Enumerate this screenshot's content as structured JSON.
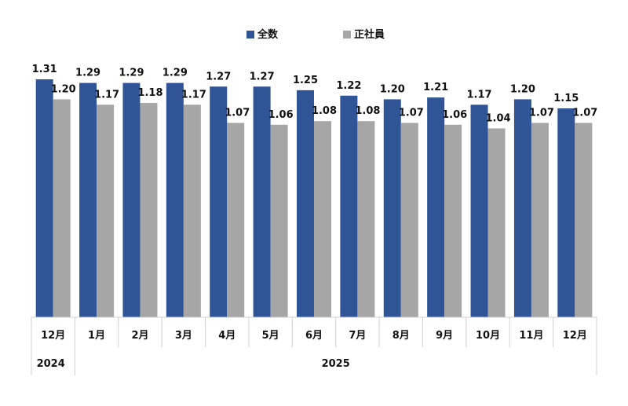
{
  "chart_data": {
    "type": "bar",
    "categories": [
      "12月",
      "1月",
      "2月",
      "3月",
      "4月",
      "5月",
      "6月",
      "7月",
      "8月",
      "9月",
      "10月",
      "11月",
      "12月"
    ],
    "years": [
      {
        "label": "2024",
        "span": [
          0,
          0
        ]
      },
      {
        "label": "2025",
        "span": [
          1,
          12
        ]
      }
    ],
    "series": [
      {
        "name": "全数",
        "color": "#2f5597",
        "values": [
          1.31,
          1.29,
          1.29,
          1.29,
          1.27,
          1.27,
          1.25,
          1.22,
          1.2,
          1.21,
          1.17,
          1.2,
          1.15
        ]
      },
      {
        "name": "正社員",
        "color": "#a6a6a6",
        "values": [
          1.2,
          1.17,
          1.18,
          1.17,
          1.07,
          1.06,
          1.08,
          1.08,
          1.07,
          1.06,
          1.04,
          1.07,
          1.07
        ]
      }
    ],
    "data_labels": {
      "全数": [
        "1.31",
        "1.29",
        "1.29",
        "1.29",
        "1.27",
        "1.27",
        "1.25",
        "1.22",
        "1.20",
        "1.21",
        "1.17",
        "1.20",
        "1.15"
      ],
      "正社員": [
        "1.20",
        "1.17",
        "1.18",
        "1.17",
        "1.07",
        "1.06",
        "1.08",
        "1.08",
        "1.07",
        "1.06",
        "1.04",
        "1.07",
        "1.07"
      ]
    },
    "ylim": [
      0,
      1.31
    ],
    "grid": false,
    "legend": "top-center",
    "title": "",
    "xlabel": "",
    "ylabel": ""
  }
}
